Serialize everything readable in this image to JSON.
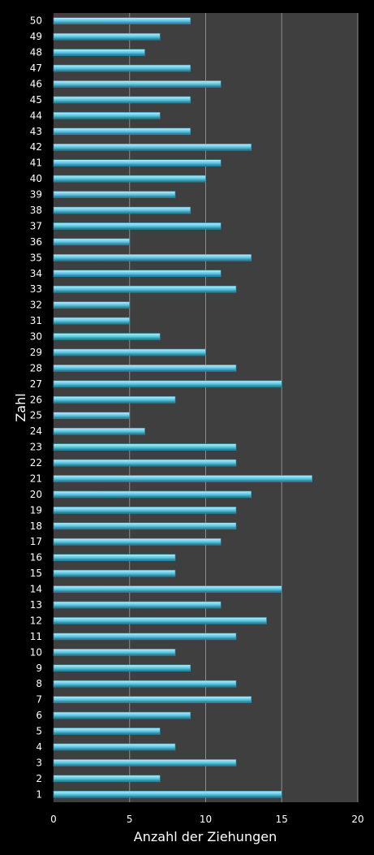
{
  "chart_data": {
    "type": "bar",
    "orientation": "horizontal",
    "xlabel": "Anzahl der Ziehungen",
    "ylabel": "Zahl",
    "xlim": [
      0,
      20
    ],
    "xticks": [
      "0",
      "5",
      "10",
      "15",
      "20"
    ],
    "grid": "vertical",
    "legend": "none",
    "colors": {
      "background": "#000000",
      "plot_area": "#3f3f3f",
      "bar": "#5cc8e3",
      "bar_highlight": "#bdeefa",
      "bar_shadow": "#1f6f86",
      "grid": "#8c8c8c",
      "text": "#ffffff"
    },
    "categories": [
      "1",
      "2",
      "3",
      "4",
      "5",
      "6",
      "7",
      "8",
      "9",
      "10",
      "11",
      "12",
      "13",
      "14",
      "15",
      "16",
      "17",
      "18",
      "19",
      "20",
      "21",
      "22",
      "23",
      "24",
      "25",
      "26",
      "27",
      "28",
      "29",
      "30",
      "31",
      "32",
      "33",
      "34",
      "35",
      "36",
      "37",
      "38",
      "39",
      "40",
      "41",
      "42",
      "43",
      "44",
      "45",
      "46",
      "47",
      "48",
      "49",
      "50"
    ],
    "values": [
      15,
      7,
      12,
      8,
      7,
      9,
      13,
      12,
      9,
      8,
      12,
      14,
      11,
      15,
      8,
      8,
      11,
      12,
      12,
      13,
      17,
      12,
      12,
      6,
      5,
      8,
      15,
      12,
      10,
      7,
      5,
      5,
      12,
      11,
      13,
      5,
      11,
      9,
      8,
      10,
      11,
      13,
      9,
      7,
      9,
      11,
      9,
      6,
      7,
      9
    ]
  }
}
